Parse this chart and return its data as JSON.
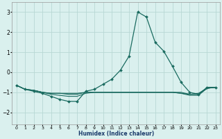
{
  "xlabel": "Humidex (Indice chaleur)",
  "ylabel": "",
  "background_color": "#daf0ee",
  "grid_color": "#b8d8d4",
  "line_color": "#1a6b60",
  "xlim": [
    -0.5,
    23.5
  ],
  "ylim": [
    -2.6,
    3.5
  ],
  "yticks": [
    -2,
    -1,
    0,
    1,
    2,
    3
  ],
  "xticks": [
    0,
    1,
    2,
    3,
    4,
    5,
    6,
    7,
    8,
    9,
    10,
    11,
    12,
    13,
    14,
    15,
    16,
    17,
    18,
    19,
    20,
    21,
    22,
    23
  ],
  "line1_x": [
    0,
    1,
    2,
    3,
    4,
    5,
    6,
    7,
    8,
    9,
    10,
    11,
    12,
    13,
    14,
    15,
    16,
    17,
    18,
    19,
    20,
    21,
    22,
    23
  ],
  "line1_y": [
    -0.65,
    -0.85,
    -0.95,
    -1.05,
    -1.2,
    -1.35,
    -1.45,
    -1.45,
    -0.95,
    -0.85,
    -0.6,
    -0.35,
    0.1,
    0.8,
    3.0,
    2.75,
    1.5,
    1.05,
    0.3,
    -0.5,
    -1.0,
    -1.1,
    -0.75,
    -0.75
  ],
  "line2_x": [
    0,
    1,
    2,
    3,
    4,
    5,
    6,
    7,
    8,
    9,
    10,
    11,
    12,
    13,
    14,
    15,
    16,
    17,
    18,
    19,
    20,
    21,
    22,
    23
  ],
  "line2_y": [
    -0.65,
    -0.85,
    -0.9,
    -1.0,
    -1.05,
    -1.05,
    -1.05,
    -1.05,
    -1.0,
    -1.0,
    -1.0,
    -1.0,
    -1.0,
    -1.0,
    -1.0,
    -1.0,
    -1.0,
    -1.0,
    -1.0,
    -1.05,
    -1.1,
    -1.1,
    -0.8,
    -0.75
  ],
  "line3_x": [
    0,
    1,
    2,
    3,
    4,
    5,
    6,
    7,
    8,
    9,
    10,
    11,
    12,
    13,
    14,
    15,
    16,
    17,
    18,
    19,
    20,
    21,
    22,
    23
  ],
  "line3_y": [
    -0.65,
    -0.85,
    -0.9,
    -1.0,
    -1.1,
    -1.15,
    -1.2,
    -1.2,
    -1.05,
    -1.0,
    -1.0,
    -1.0,
    -1.0,
    -1.0,
    -1.0,
    -1.0,
    -1.0,
    -1.0,
    -1.0,
    -1.05,
    -1.15,
    -1.15,
    -0.8,
    -0.75
  ],
  "line4_x": [
    0,
    1,
    2,
    3,
    4,
    5,
    6,
    7,
    8,
    9,
    10,
    11,
    12,
    13,
    14,
    15,
    16,
    17,
    18,
    19,
    20,
    21,
    22,
    23
  ],
  "line4_y": [
    -0.65,
    -0.85,
    -0.9,
    -1.0,
    -1.05,
    -1.05,
    -1.1,
    -1.1,
    -1.0,
    -1.0,
    -1.0,
    -1.0,
    -1.0,
    -1.0,
    -1.0,
    -1.0,
    -1.0,
    -1.0,
    -1.0,
    -1.0,
    -1.1,
    -1.05,
    -0.8,
    -0.75
  ]
}
